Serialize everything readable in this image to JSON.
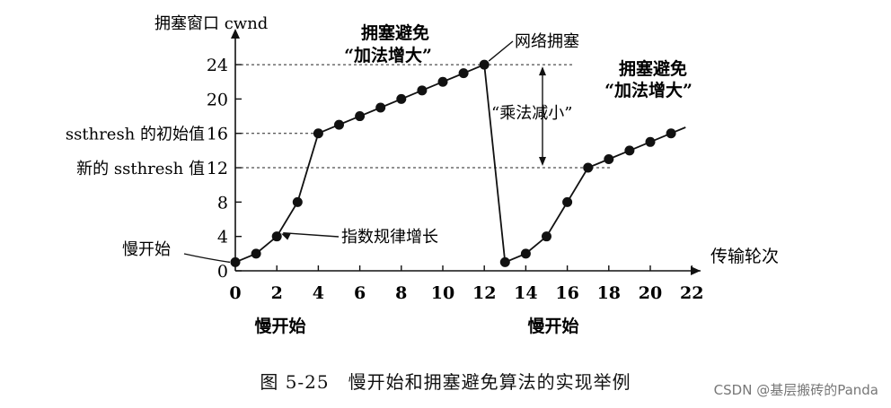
{
  "chart_data": {
    "type": "line",
    "ylabel": "拥塞窗口 cwnd",
    "xlabel": "传输轮次",
    "xlim": [
      0,
      23
    ],
    "ylim": [
      0,
      26
    ],
    "x_ticks": [
      0,
      2,
      4,
      6,
      8,
      10,
      12,
      14,
      16,
      18,
      20,
      22
    ],
    "y_ticks": [
      0,
      4,
      8,
      12,
      16,
      20,
      24
    ],
    "dashed_levels": [
      24,
      16,
      12
    ],
    "y_level_labels": [
      {
        "value": 16,
        "text": "ssthresh 的初始值"
      },
      {
        "value": 12,
        "text": "新的 ssthresh 值"
      }
    ],
    "series": [
      {
        "x": [
          0,
          1,
          2,
          3,
          4,
          5,
          6,
          7,
          8,
          9,
          10,
          11,
          12,
          13,
          14,
          15,
          16,
          17,
          18,
          19,
          20,
          21
        ],
        "y": [
          1,
          2,
          4,
          8,
          16,
          17,
          18,
          19,
          20,
          21,
          22,
          23,
          24,
          1,
          2,
          4,
          8,
          12,
          13,
          14,
          15,
          16
        ]
      }
    ],
    "line_extension": {
      "x": 21.7,
      "y": 16.7
    },
    "annotations": {
      "slow_start_left": "慢开始",
      "exponential_growth": "指数规律增长",
      "congestion_avoidance_1_line1": "拥塞避免",
      "congestion_avoidance_1_line2": "“加法增大”",
      "network_congestion": "网络拥塞",
      "multiplicative_decrease": "“乘法减小”",
      "congestion_avoidance_2_line1": "拥塞避免",
      "congestion_avoidance_2_line2": "“加法增大”",
      "slow_start_bottom_1": "慢开始",
      "slow_start_bottom_2": "慢开始"
    }
  },
  "caption": "图 5-25　慢开始和拥塞避免算法的实现举例",
  "watermark": "CSDN @基层搬砖的Panda"
}
